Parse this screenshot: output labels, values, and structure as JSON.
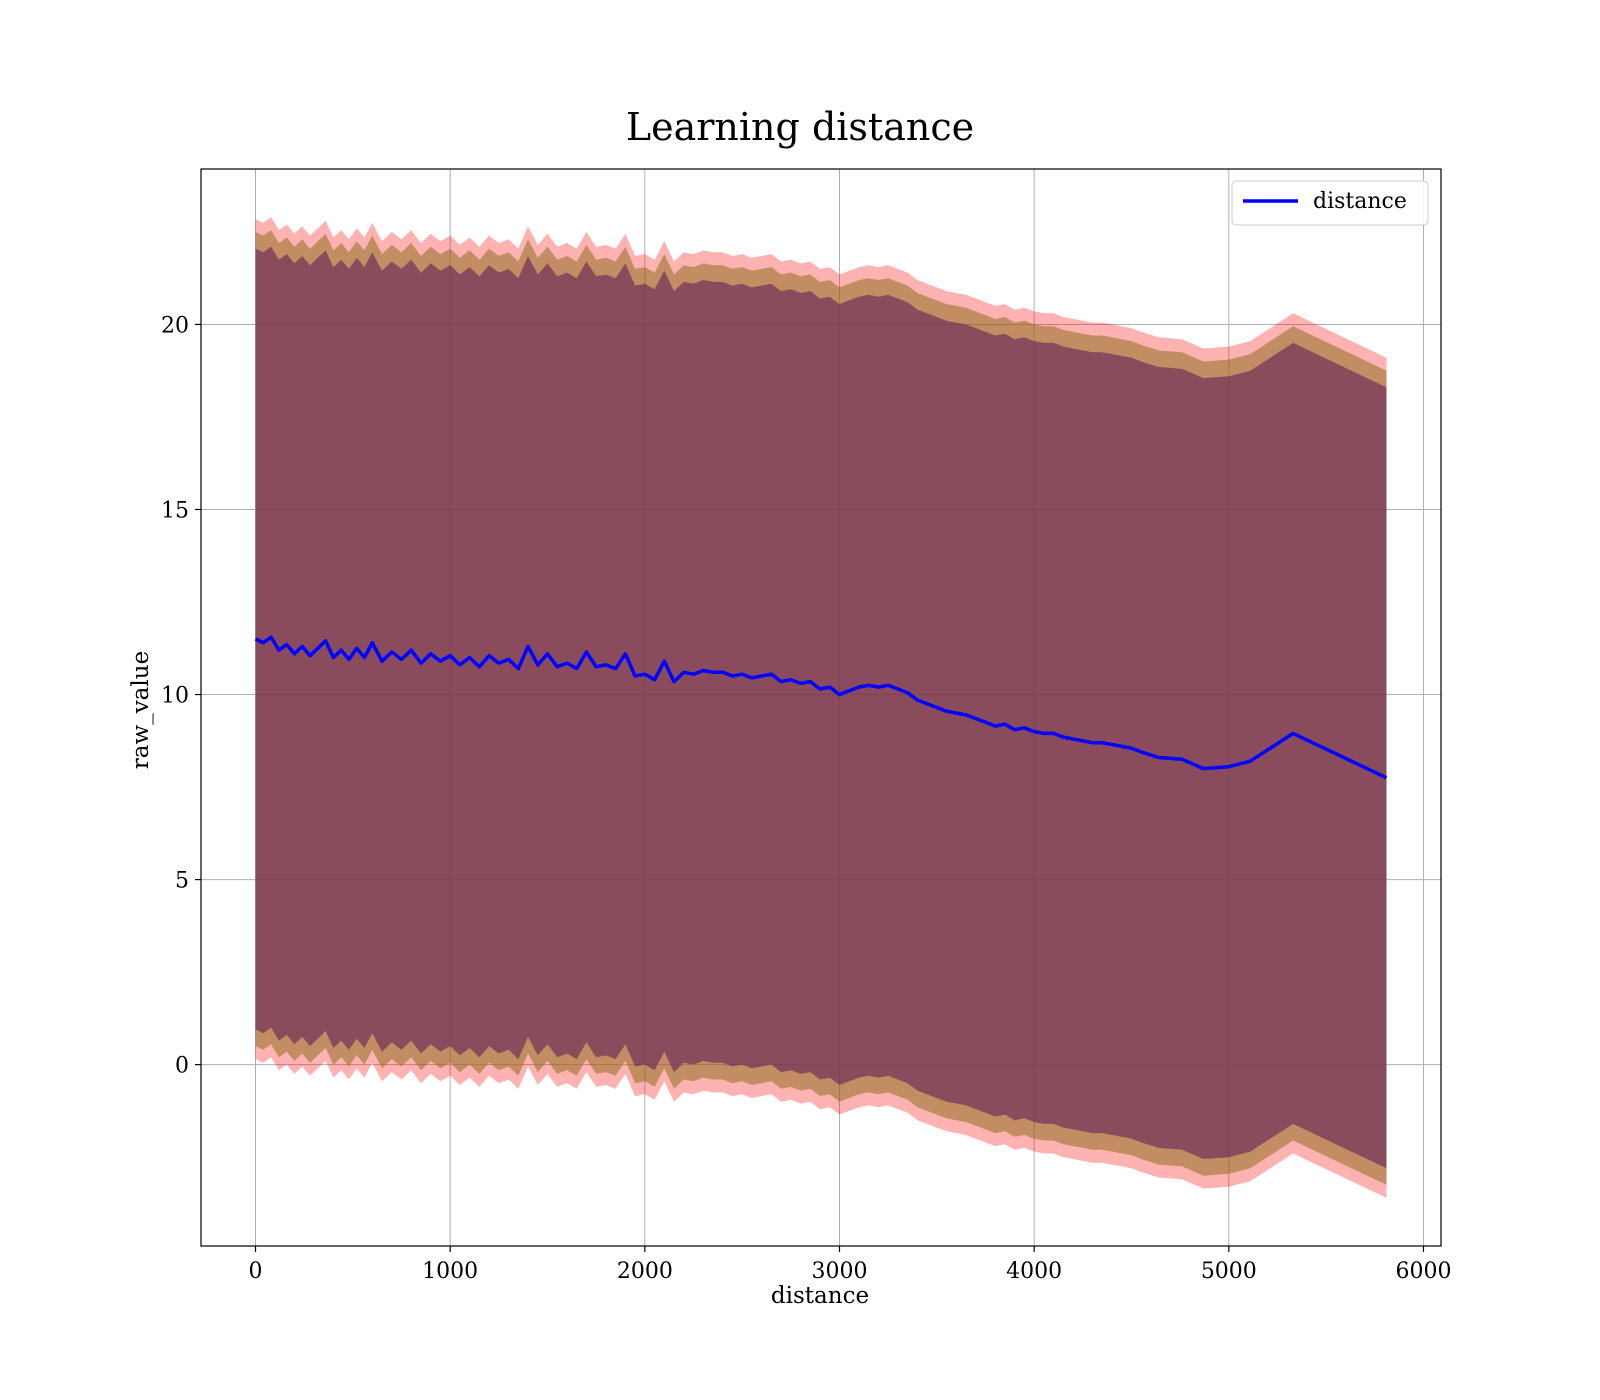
{
  "chart_data": {
    "type": "line",
    "title": "Learning distance",
    "xlabel": "distance",
    "ylabel": "raw_value",
    "xlim": [
      -280,
      6090
    ],
    "ylim": [
      -4.9,
      24.2
    ],
    "xticks": [
      0,
      1000,
      2000,
      3000,
      4000,
      5000,
      6000
    ],
    "yticks": [
      0,
      5,
      10,
      15,
      20
    ],
    "grid": true,
    "legend": {
      "position": "top-right",
      "entries": [
        "distance"
      ]
    },
    "colors": {
      "line": "#0000ff",
      "band_outer": "#ff0000",
      "band_middle": "#8f7020",
      "band_inner": "#6b2a5b"
    },
    "series": [
      {
        "name": "distance",
        "x": [
          0,
          40,
          80,
          120,
          160,
          200,
          240,
          280,
          320,
          360,
          400,
          440,
          480,
          520,
          560,
          600,
          650,
          700,
          750,
          800,
          850,
          900,
          950,
          1000,
          1050,
          1100,
          1150,
          1200,
          1250,
          1300,
          1350,
          1400,
          1450,
          1500,
          1550,
          1600,
          1650,
          1700,
          1750,
          1800,
          1850,
          1900,
          1950,
          2000,
          2050,
          2100,
          2150,
          2200,
          2250,
          2300,
          2350,
          2400,
          2450,
          2500,
          2550,
          2600,
          2650,
          2700,
          2750,
          2800,
          2850,
          2900,
          2950,
          3000,
          3050,
          3100,
          3150,
          3200,
          3250,
          3300,
          3350,
          3400,
          3450,
          3500,
          3550,
          3600,
          3650,
          3700,
          3750,
          3800,
          3850,
          3900,
          3950,
          4000,
          4050,
          4100,
          4150,
          4200,
          4250,
          4300,
          4350,
          4400,
          4450,
          4500,
          4550,
          4640,
          4760,
          4870,
          5000,
          5110,
          5330,
          5810
        ],
        "y": [
          11.5,
          11.4,
          11.55,
          11.2,
          11.35,
          11.1,
          11.3,
          11.05,
          11.25,
          11.45,
          11.0,
          11.2,
          10.95,
          11.25,
          11.0,
          11.4,
          10.9,
          11.15,
          10.95,
          11.2,
          10.85,
          11.1,
          10.9,
          11.05,
          10.8,
          11.0,
          10.75,
          11.05,
          10.85,
          10.95,
          10.7,
          11.3,
          10.8,
          11.1,
          10.75,
          10.85,
          10.7,
          11.15,
          10.75,
          10.8,
          10.7,
          11.1,
          10.5,
          10.55,
          10.4,
          10.9,
          10.35,
          10.6,
          10.55,
          10.65,
          10.6,
          10.6,
          10.5,
          10.55,
          10.45,
          10.5,
          10.55,
          10.35,
          10.4,
          10.3,
          10.35,
          10.15,
          10.2,
          10.0,
          10.1,
          10.2,
          10.25,
          10.2,
          10.25,
          10.15,
          10.05,
          9.85,
          9.75,
          9.65,
          9.55,
          9.5,
          9.45,
          9.35,
          9.25,
          9.15,
          9.2,
          9.05,
          9.1,
          9.0,
          8.95,
          8.95,
          8.85,
          8.8,
          8.75,
          8.7,
          8.7,
          8.65,
          8.6,
          8.55,
          8.45,
          8.3,
          8.25,
          8.0,
          8.05,
          8.2,
          8.95,
          7.75
        ]
      }
    ],
    "bands": [
      {
        "name": "outer",
        "offset": 11.35
      },
      {
        "name": "middle",
        "offset": 11.0
      },
      {
        "name": "inner",
        "offset": 10.55
      }
    ]
  }
}
